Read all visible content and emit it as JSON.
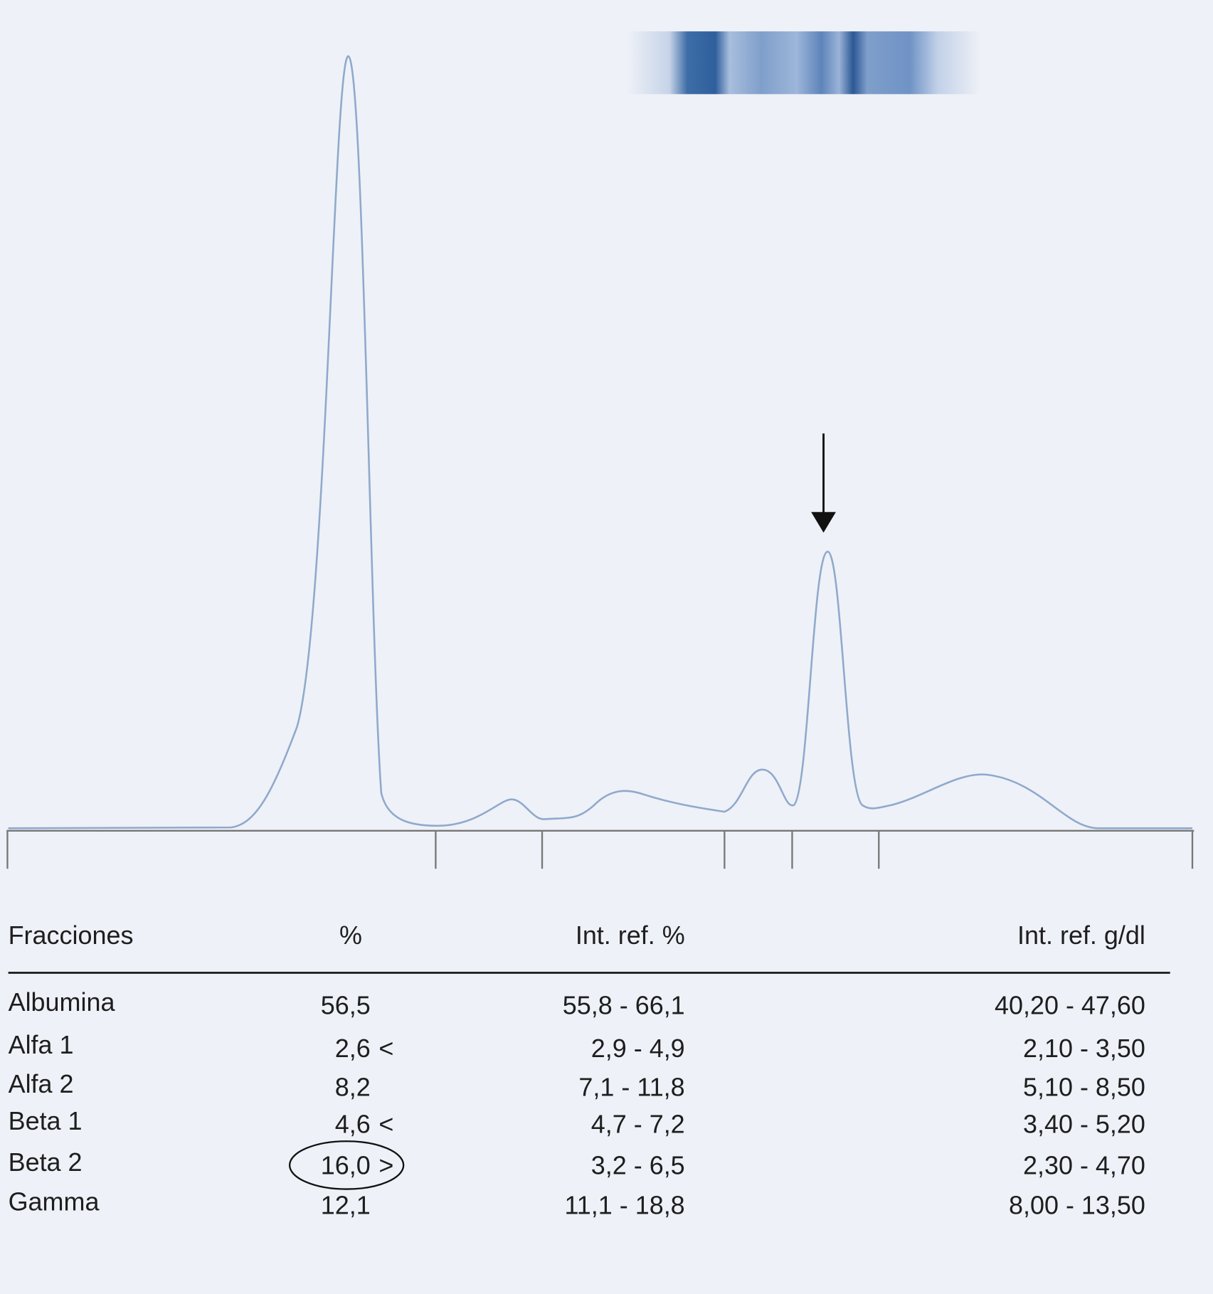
{
  "table": {
    "columns": [
      "Fracciones",
      "%",
      "Int. ref. %",
      "Int. ref. g/dl"
    ],
    "rows": [
      {
        "name": "Albumina",
        "pct": "56,5",
        "ref_pct": "55,8 - 66,1",
        "ref_gdl": "40,20 - 47,60"
      },
      {
        "name": "Alfa 1",
        "pct": "2,6",
        "flag": "<",
        "ref_pct": "2,9 - 4,9",
        "ref_gdl": "2,10 - 3,50"
      },
      {
        "name": "Alfa 2",
        "pct": "8,2",
        "ref_pct": "7,1 - 11,8",
        "ref_gdl": "5,10 - 8,50"
      },
      {
        "name": "Beta 1",
        "pct": "4,6",
        "flag": "<",
        "ref_pct": "4,7 - 7,2",
        "ref_gdl": "3,40 - 5,20"
      },
      {
        "name": "Beta 2",
        "pct": "16,0",
        "flag": ">",
        "ref_pct": "3,2 - 6,5",
        "ref_gdl": "2,30 - 4,70"
      },
      {
        "name": "Gamma",
        "pct": "12,1",
        "ref_pct": "11,1 - 18,8",
        "ref_gdl": "8,00 - 13,50"
      }
    ]
  }
}
